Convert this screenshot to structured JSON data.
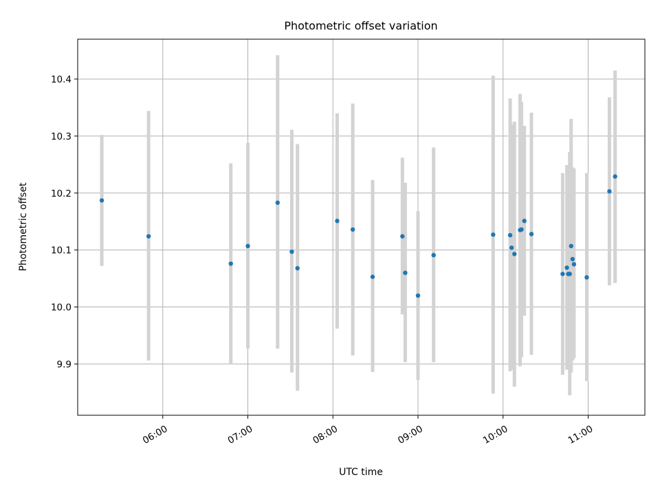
{
  "chart_data": {
    "type": "scatter",
    "title": "Photometric offset variation",
    "xlabel": "UTC time",
    "ylabel": "Photometric offset",
    "xlim": [
      "05:00",
      "11:40"
    ],
    "ylim": [
      9.81,
      10.47
    ],
    "grid": true,
    "x_ticks": [
      "06:00",
      "07:00",
      "08:00",
      "09:00",
      "10:00",
      "11:00"
    ],
    "y_ticks": [
      "9.9",
      "10.0",
      "10.1",
      "10.2",
      "10.3",
      "10.4"
    ],
    "colors": {
      "point": "#1f77b4",
      "errorbar": "#d3d3d3",
      "grid": "#b0b0b0"
    },
    "points": [
      {
        "x": "05:17",
        "y": 10.187,
        "lo": 10.072,
        "hi": 10.302
      },
      {
        "x": "05:50",
        "y": 10.124,
        "lo": 9.906,
        "hi": 10.344
      },
      {
        "x": "06:48",
        "y": 10.076,
        "lo": 9.9,
        "hi": 10.252
      },
      {
        "x": "07:00",
        "y": 10.107,
        "lo": 9.927,
        "hi": 10.288
      },
      {
        "x": "07:21",
        "y": 10.183,
        "lo": 9.927,
        "hi": 10.442
      },
      {
        "x": "07:31",
        "y": 10.097,
        "lo": 9.885,
        "hi": 10.311
      },
      {
        "x": "07:35",
        "y": 10.068,
        "lo": 9.853,
        "hi": 10.286
      },
      {
        "x": "08:03",
        "y": 10.151,
        "lo": 9.962,
        "hi": 10.34
      },
      {
        "x": "08:14",
        "y": 10.136,
        "lo": 9.915,
        "hi": 10.357
      },
      {
        "x": "08:28",
        "y": 10.053,
        "lo": 9.886,
        "hi": 10.223
      },
      {
        "x": "08:49",
        "y": 10.124,
        "lo": 9.987,
        "hi": 10.262
      },
      {
        "x": "08:51",
        "y": 10.06,
        "lo": 9.903,
        "hi": 10.218
      },
      {
        "x": "09:00",
        "y": 10.02,
        "lo": 9.872,
        "hi": 10.168
      },
      {
        "x": "09:11",
        "y": 10.091,
        "lo": 9.903,
        "hi": 10.28
      },
      {
        "x": "09:53",
        "y": 10.127,
        "lo": 9.848,
        "hi": 10.406
      },
      {
        "x": "10:05",
        "y": 10.126,
        "lo": 9.887,
        "hi": 10.366
      },
      {
        "x": "10:06",
        "y": 10.104,
        "lo": 9.89,
        "hi": 10.32
      },
      {
        "x": "10:08",
        "y": 10.093,
        "lo": 9.86,
        "hi": 10.325
      },
      {
        "x": "10:12",
        "y": 10.135,
        "lo": 9.896,
        "hi": 10.374
      },
      {
        "x": "10:13",
        "y": 10.136,
        "lo": 9.912,
        "hi": 10.36
      },
      {
        "x": "10:15",
        "y": 10.151,
        "lo": 9.985,
        "hi": 10.318
      },
      {
        "x": "10:20",
        "y": 10.128,
        "lo": 9.916,
        "hi": 10.341
      },
      {
        "x": "10:42",
        "y": 10.058,
        "lo": 9.881,
        "hi": 10.235
      },
      {
        "x": "10:45",
        "y": 10.069,
        "lo": 9.89,
        "hi": 10.249
      },
      {
        "x": "10:46",
        "y": 10.058,
        "lo": 9.893,
        "hi": 10.223
      },
      {
        "x": "10:47",
        "y": 10.058,
        "lo": 9.845,
        "hi": 10.272
      },
      {
        "x": "10:48",
        "y": 10.107,
        "lo": 9.885,
        "hi": 10.33
      },
      {
        "x": "10:49",
        "y": 10.084,
        "lo": 9.906,
        "hi": 10.245
      },
      {
        "x": "10:50",
        "y": 10.075,
        "lo": 9.91,
        "hi": 10.243
      },
      {
        "x": "10:59",
        "y": 10.052,
        "lo": 9.87,
        "hi": 10.235
      },
      {
        "x": "11:15",
        "y": 10.203,
        "lo": 10.038,
        "hi": 10.368
      },
      {
        "x": "11:19",
        "y": 10.229,
        "lo": 10.042,
        "hi": 10.415
      }
    ]
  }
}
